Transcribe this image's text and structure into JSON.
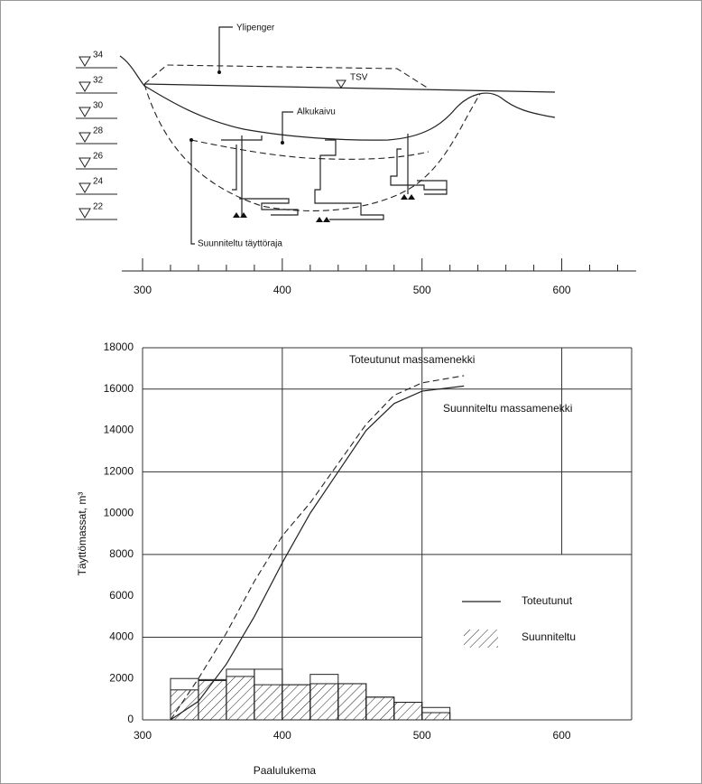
{
  "section": {
    "elevations": [
      "34",
      "32",
      "30",
      "28",
      "26",
      "24",
      "22"
    ],
    "labels": {
      "fill": "Ylipenger",
      "water": "TSV",
      "original": "Alkukaivu",
      "design": "Suunniteltu täyttöraja"
    },
    "xticks": [
      "300",
      "400",
      "500",
      "600"
    ]
  },
  "chart_data": {
    "type": "histogram-line",
    "xlabel": "Paalulukema",
    "ylabel": "Täyttömassat, m³",
    "xlim": [
      300,
      650
    ],
    "ylim": [
      0,
      18000
    ],
    "xticks": [
      300,
      400,
      500,
      600
    ],
    "yticks": [
      0,
      2000,
      4000,
      6000,
      8000,
      10000,
      12000,
      14000,
      16000,
      18000
    ],
    "grid": true,
    "bins": [
      320,
      340,
      360,
      380,
      400,
      420,
      440,
      460,
      480,
      500,
      520
    ],
    "bars": [
      {
        "style": "outline",
        "values": [
          2000,
          1900,
          2450,
          2450,
          1700,
          2200,
          1750,
          1100,
          850,
          600
        ]
      },
      {
        "name": "Suunniteltu",
        "style": "hatched",
        "values": [
          1450,
          1950,
          2100,
          1700,
          1700,
          1750,
          1750,
          1100,
          850,
          350
        ]
      }
    ],
    "lines": [
      {
        "name": "Toteutunut",
        "dashed": false,
        "x": [
          320,
          340,
          360,
          380,
          400,
          420,
          440,
          460,
          480,
          500,
          530
        ],
        "values": [
          0,
          900,
          2700,
          5000,
          7600,
          10000,
          12000,
          14000,
          15300,
          15900,
          16150
        ]
      },
      {
        "dashed": true,
        "x": [
          320,
          340,
          360,
          380,
          400,
          420,
          440,
          460,
          480,
          500,
          530
        ],
        "values": [
          0,
          2000,
          4200,
          6700,
          8900,
          10500,
          12400,
          14300,
          15700,
          16300,
          16650
        ]
      }
    ],
    "annotations": [
      "Toteutunut massamenekki",
      "Suunniteltu massamenekki"
    ]
  }
}
